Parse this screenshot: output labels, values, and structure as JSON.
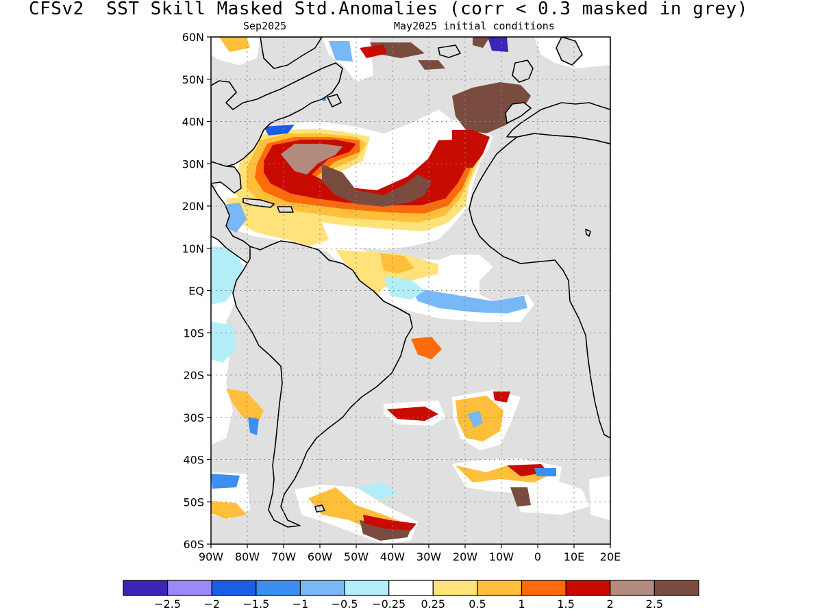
{
  "title": "CFSv2  SST Skill Masked Std.Anomalies (corr < 0.3 masked in grey)",
  "subtitle_left": "Sep2025",
  "subtitle_right": "May2025 initial conditions",
  "lat_labels": [
    "60N",
    "50N",
    "40N",
    "30N",
    "20N",
    "10N",
    "EQ",
    "10S",
    "20S",
    "30S",
    "40S",
    "50S",
    "60S"
  ],
  "lon_labels": [
    "90W",
    "80W",
    "70W",
    "60W",
    "50W",
    "40W",
    "30W",
    "20W",
    "10W",
    "0",
    "10E",
    "20E"
  ],
  "colorbar": {
    "colors": [
      "#3b25b5",
      "#9c88f7",
      "#1a5ee6",
      "#3a8ff0",
      "#78b8f6",
      "#b2eef7",
      "#ffffff",
      "#ffe27a",
      "#ffbf3a",
      "#ff6a0c",
      "#c80b00",
      "#b38a7e",
      "#7a4c40"
    ],
    "tick_labels": [
      "−2.5",
      "−2",
      "−1.5",
      "−1",
      "−0.5",
      "−0.25",
      "0.25",
      "0.5",
      "1",
      "1.5",
      "2",
      "2.5"
    ]
  },
  "colors": {
    "mask_grey": "#e0e0e0",
    "ocean_white": "#ffffff",
    "coast": "#000000"
  }
}
